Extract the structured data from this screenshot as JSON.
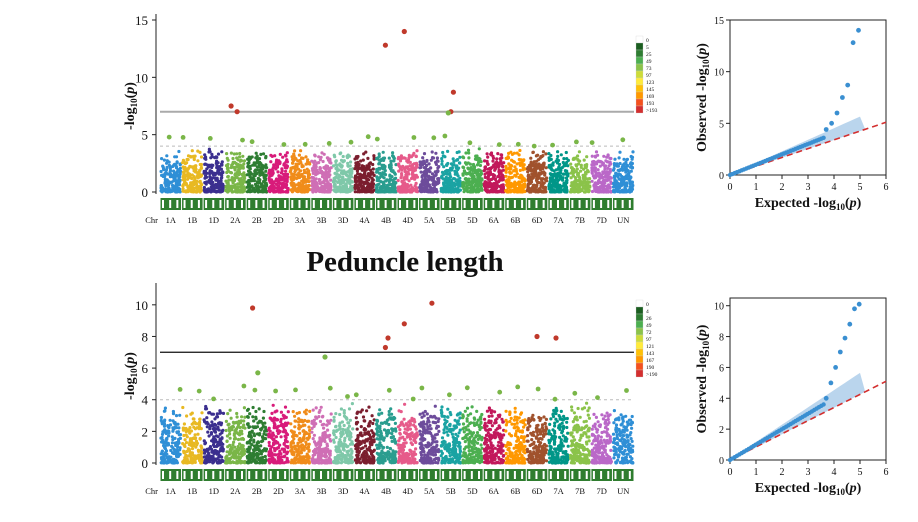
{
  "section_title": "Peduncle length",
  "colors": {
    "chromosome_palette": [
      "#2f8fd6",
      "#e8b923",
      "#3b2f8f",
      "#7ab648",
      "#2e7d32",
      "#d81b7a",
      "#f08c1a",
      "#cf6fb5",
      "#7fc8a9",
      "#7b1e2e",
      "#2a9d8f",
      "#e65a8a",
      "#6d4c9b",
      "#1aa3a3",
      "#4caf50",
      "#c2185b",
      "#ff9800",
      "#a0522d",
      "#009688",
      "#8bc34a",
      "#ba68c8"
    ],
    "threshold_line": "#aaaaaa",
    "threshold_line_bottom": "#111111",
    "suggestive_line": "#bbbbbb",
    "qq_points": "#3a8fd1",
    "qq_expected_line": "#d32f2f",
    "qq_band": "#a9cbe8"
  },
  "chart_data": [
    {
      "type": "scatter",
      "subtype": "manhattan",
      "title": "",
      "ylabel": "-log10(p)",
      "xlabel_prefix": "Chr",
      "ylim": [
        0,
        15
      ],
      "yticks": [
        0,
        5,
        10,
        15
      ],
      "chromosomes": [
        "1A",
        "1B",
        "1D",
        "2A",
        "2B",
        "2D",
        "3A",
        "3B",
        "3D",
        "4A",
        "4B",
        "4D",
        "5A",
        "5B",
        "5D",
        "6A",
        "6B",
        "6D",
        "7A",
        "7B",
        "7D",
        "UN"
      ],
      "significance_threshold": 7.0,
      "suggestive_threshold": 4.0,
      "significant_points": [
        {
          "chr": "2A",
          "value": 7.5
        },
        {
          "chr": "2A",
          "value": 7.0
        },
        {
          "chr": "4B",
          "value": 12.8
        },
        {
          "chr": "4D",
          "value": 14.0
        },
        {
          "chr": "5B",
          "value": 8.7
        },
        {
          "chr": "5B",
          "value": 7.0
        },
        {
          "chr": "5B",
          "value": 6.9
        }
      ],
      "density_legend": [
        "0",
        "5",
        "25",
        "49",
        "73",
        "97",
        "123",
        "145",
        "169",
        "193",
        ">193"
      ]
    },
    {
      "type": "scatter",
      "subtype": "qq",
      "title": "",
      "xlabel": "Expected -log10(p)",
      "ylabel": "Observed -log10(p)",
      "xlim": [
        0,
        6
      ],
      "ylim": [
        0,
        15
      ],
      "xticks": [
        0,
        1,
        2,
        3,
        4,
        5,
        6
      ],
      "yticks": [
        0,
        5,
        10,
        15
      ],
      "top_observed": [
        4.4,
        5.0,
        6.0,
        7.5,
        8.7,
        12.8,
        14.0
      ]
    },
    {
      "type": "scatter",
      "subtype": "manhattan",
      "title": "Peduncle length",
      "ylabel": "-log10(p)",
      "xlabel_prefix": "Chr",
      "ylim": [
        0,
        11
      ],
      "yticks": [
        0,
        2,
        4,
        6,
        8,
        10
      ],
      "chromosomes": [
        "1A",
        "1B",
        "1D",
        "2A",
        "2B",
        "2D",
        "3A",
        "3B",
        "3D",
        "4A",
        "4B",
        "4D",
        "5A",
        "5B",
        "5D",
        "6A",
        "6B",
        "6D",
        "7A",
        "7B",
        "7D",
        "UN"
      ],
      "significance_threshold": 7.0,
      "suggestive_threshold": 4.0,
      "significant_points": [
        {
          "chr": "2B",
          "value": 9.8
        },
        {
          "chr": "4B",
          "value": 7.9
        },
        {
          "chr": "4B",
          "value": 7.3
        },
        {
          "chr": "4D",
          "value": 8.8
        },
        {
          "chr": "5A",
          "value": 10.1
        },
        {
          "chr": "6D",
          "value": 8.0
        },
        {
          "chr": "7A",
          "value": 7.9
        },
        {
          "chr": "3B",
          "value": 6.7
        },
        {
          "chr": "2B",
          "value": 5.7
        }
      ],
      "density_legend": [
        "0",
        "4",
        "26",
        "49",
        "72",
        "97",
        "121",
        "143",
        "167",
        "190",
        ">190"
      ]
    },
    {
      "type": "scatter",
      "subtype": "qq",
      "title": "",
      "xlabel": "Expected -log10(p)",
      "ylabel": "Observed -log10(p)",
      "xlim": [
        0,
        6
      ],
      "ylim": [
        0,
        10.5
      ],
      "xticks": [
        0,
        1,
        2,
        3,
        4,
        5,
        6
      ],
      "yticks": [
        0,
        2,
        4,
        6,
        8,
        10
      ],
      "top_observed": [
        4.0,
        5.0,
        6.0,
        7.0,
        7.9,
        8.8,
        9.8,
        10.1
      ]
    }
  ]
}
